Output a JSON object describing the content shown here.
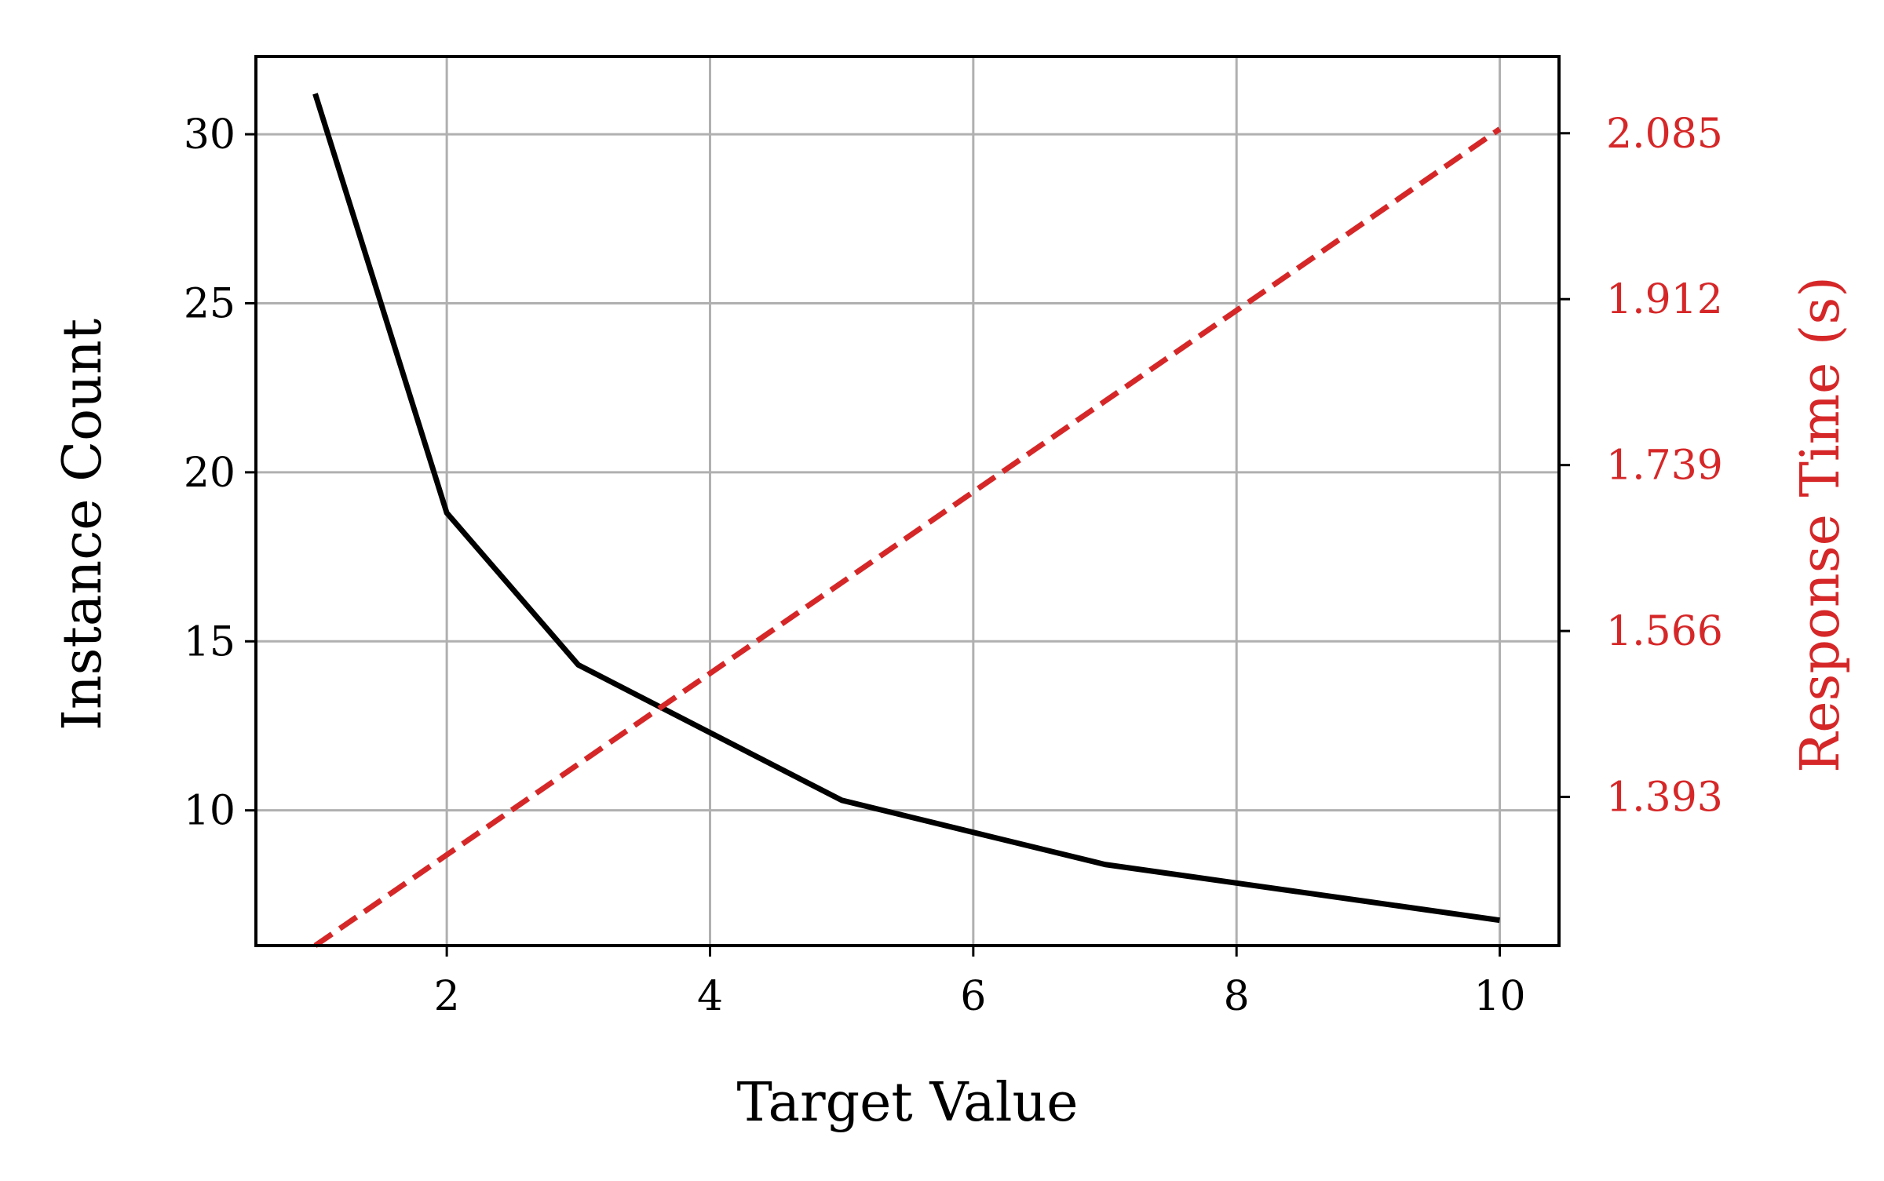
{
  "chart_data": {
    "type": "line",
    "title": "",
    "xlabel": "Target Value",
    "ylabel_left": "Instance Count",
    "ylabel_right": "Response Time (s)",
    "xlim": [
      0.55,
      10.45
    ],
    "ylim_left": [
      6.0,
      32.3
    ],
    "ylim_right": [
      1.238,
      2.165
    ],
    "x_ticks": [
      2,
      4,
      6,
      8,
      10
    ],
    "y_ticks_left": [
      10,
      15,
      20,
      25,
      30
    ],
    "y_ticks_right": [
      "1.393",
      "1.566",
      "1.739",
      "1.912",
      "2.085"
    ],
    "grid": true,
    "colors": {
      "left_axis": "#000000",
      "right_axis": "#d62728",
      "grid": "#b0b0b0"
    },
    "series": [
      {
        "axis": "left",
        "style": "solid",
        "color": "#000000",
        "x": [
          1,
          2,
          3,
          4,
          5,
          6,
          7,
          8,
          9,
          10
        ],
        "y": [
          31.2,
          18.8,
          14.3,
          12.3,
          10.3,
          9.35,
          8.4,
          7.85,
          7.3,
          6.75
        ]
      },
      {
        "axis": "right",
        "style": "dashed",
        "color": "#d62728",
        "x": [
          1,
          2,
          3,
          4,
          5,
          6,
          7,
          8,
          9,
          10
        ],
        "y": [
          1.238,
          1.3326,
          1.4272,
          1.5218,
          1.6164,
          1.711,
          1.8056,
          1.9002,
          1.9948,
          2.0894
        ]
      }
    ]
  }
}
